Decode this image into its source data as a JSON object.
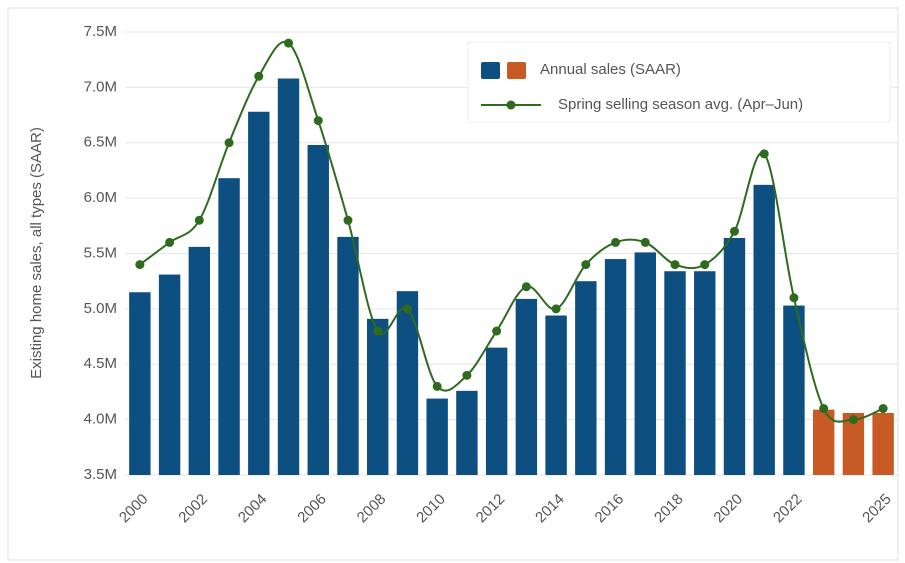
{
  "chart_data": {
    "type": "bar",
    "y_label": "Existing home sales, all types (SAAR)",
    "categories": [
      "2000",
      null,
      "2002",
      null,
      "2004",
      null,
      "2006",
      null,
      "2008",
      null,
      "2010",
      null,
      "2012",
      null,
      "2014",
      null,
      "2016",
      null,
      "2018",
      null,
      "2020",
      null,
      "2022",
      null,
      null,
      "2025"
    ],
    "series": [
      {
        "name": "Annual sales (SAAR)",
        "type": "bar",
        "colors": [
          "#0d4f80",
          "#0d4f80",
          "#0d4f80",
          "#0d4f80",
          "#0d4f80",
          "#0d4f80",
          "#0d4f80",
          "#0d4f80",
          "#0d4f80",
          "#0d4f80",
          "#0d4f80",
          "#0d4f80",
          "#0d4f80",
          "#0d4f80",
          "#0d4f80",
          "#0d4f80",
          "#0d4f80",
          "#0d4f80",
          "#0d4f80",
          "#0d4f80",
          "#0d4f80",
          "#0d4f80",
          "#0d4f80",
          "#c85a25",
          "#c85a25",
          "#c85a25"
        ],
        "values": [
          5.15,
          5.31,
          5.56,
          6.18,
          6.78,
          7.08,
          6.48,
          5.65,
          4.91,
          5.16,
          4.19,
          4.26,
          4.65,
          5.09,
          4.94,
          5.25,
          5.45,
          5.51,
          5.34,
          5.34,
          5.64,
          6.12,
          5.03,
          4.09,
          4.06,
          4.06
        ]
      },
      {
        "name": "Spring selling season avg. (Apr–Jun)",
        "type": "line",
        "color": "#2e6b1f",
        "values": [
          5.4,
          5.6,
          5.8,
          6.5,
          7.1,
          7.4,
          6.7,
          5.8,
          4.8,
          5.0,
          4.3,
          4.4,
          4.8,
          5.2,
          5.0,
          5.4,
          5.6,
          5.6,
          5.4,
          5.4,
          5.7,
          6.4,
          5.1,
          4.1,
          4.0,
          4.1
        ]
      }
    ],
    "ylim": [
      3.5,
      7.5
    ],
    "yticks": [
      {
        "value": 3.5,
        "label": "3.5M"
      },
      {
        "value": 4.0,
        "label": "4.0M"
      },
      {
        "value": 4.5,
        "label": "4.5M"
      },
      {
        "value": 5.0,
        "label": "5.0M"
      },
      {
        "value": 5.5,
        "label": "5.5M"
      },
      {
        "value": 6.0,
        "label": "6.0M"
      },
      {
        "value": 6.5,
        "label": "6.5M"
      },
      {
        "value": 7.0,
        "label": "7.0M"
      },
      {
        "value": 7.5,
        "label": "7.5M"
      }
    ],
    "grid": true,
    "legend": "upper right"
  }
}
